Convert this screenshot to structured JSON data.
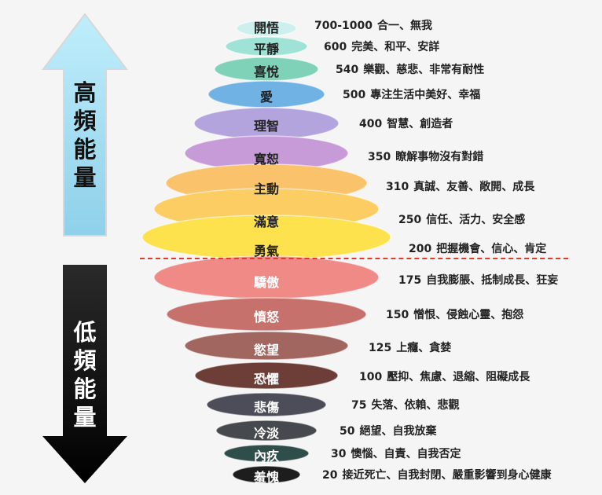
{
  "arrows": {
    "high": {
      "label": "高頻能量",
      "color": "#a8e0f3"
    },
    "low": {
      "label": "低頻能量",
      "color": "#1a1a1a"
    }
  },
  "levels": [
    {
      "name": "開悟",
      "value": "700-1000",
      "desc": "合一、無我",
      "color": "#cdf0ef"
    },
    {
      "name": "平靜",
      "value": "600",
      "desc": "完美、和平、安詳",
      "color": "#9fe3d6"
    },
    {
      "name": "喜悅",
      "value": "540",
      "desc": "樂觀、慈悲、非常有耐性",
      "color": "#7fd2b7"
    },
    {
      "name": "愛",
      "value": "500",
      "desc": "專注生活中美好、幸福",
      "color": "#71b2e5"
    },
    {
      "name": "理智",
      "value": "400",
      "desc": "智慧、創造者",
      "color": "#b3a4dd"
    },
    {
      "name": "寬恕",
      "value": "350",
      "desc": "瞭解事物沒有對錯",
      "color": "#c79bd8"
    },
    {
      "name": "主動",
      "value": "310",
      "desc": "真誠、友善、敞開、成長",
      "color": "#f9c26b"
    },
    {
      "name": "滿意",
      "value": "250",
      "desc": "信任、活力、安全感",
      "color": "#fbcd62"
    },
    {
      "name": "勇氣",
      "value": "200",
      "desc": "把握機會、信心、肯定",
      "color": "#fde24d"
    },
    {
      "name": "驕傲",
      "value": "175",
      "desc": "自我膨脹、抵制成長、狂妄",
      "color": "#ef8a86"
    },
    {
      "name": "憤怒",
      "value": "150",
      "desc": "憎恨、侵蝕心靈、抱怨",
      "color": "#c7716c"
    },
    {
      "name": "慾望",
      "value": "125",
      "desc": "上癮、貪婪",
      "color": "#a26660"
    },
    {
      "name": "恐懼",
      "value": "100",
      "desc": "壓抑、焦慮、退縮、阻礙成長",
      "color": "#6d3d37"
    },
    {
      "name": "悲傷",
      "value": "75",
      "desc": "失落、依賴、悲觀",
      "color": "#4d4d59"
    },
    {
      "name": "冷淡",
      "value": "50",
      "desc": "絕望、自我放棄",
      "color": "#46494d"
    },
    {
      "name": "內疚",
      "value": "30",
      "desc": "懊惱、自責、自我否定",
      "color": "#2f4d49"
    },
    {
      "name": "羞愧",
      "value": "20",
      "desc": "接近死亡、自我封閉、嚴重影響到身心健康",
      "color": "#1d1d1d"
    }
  ]
}
